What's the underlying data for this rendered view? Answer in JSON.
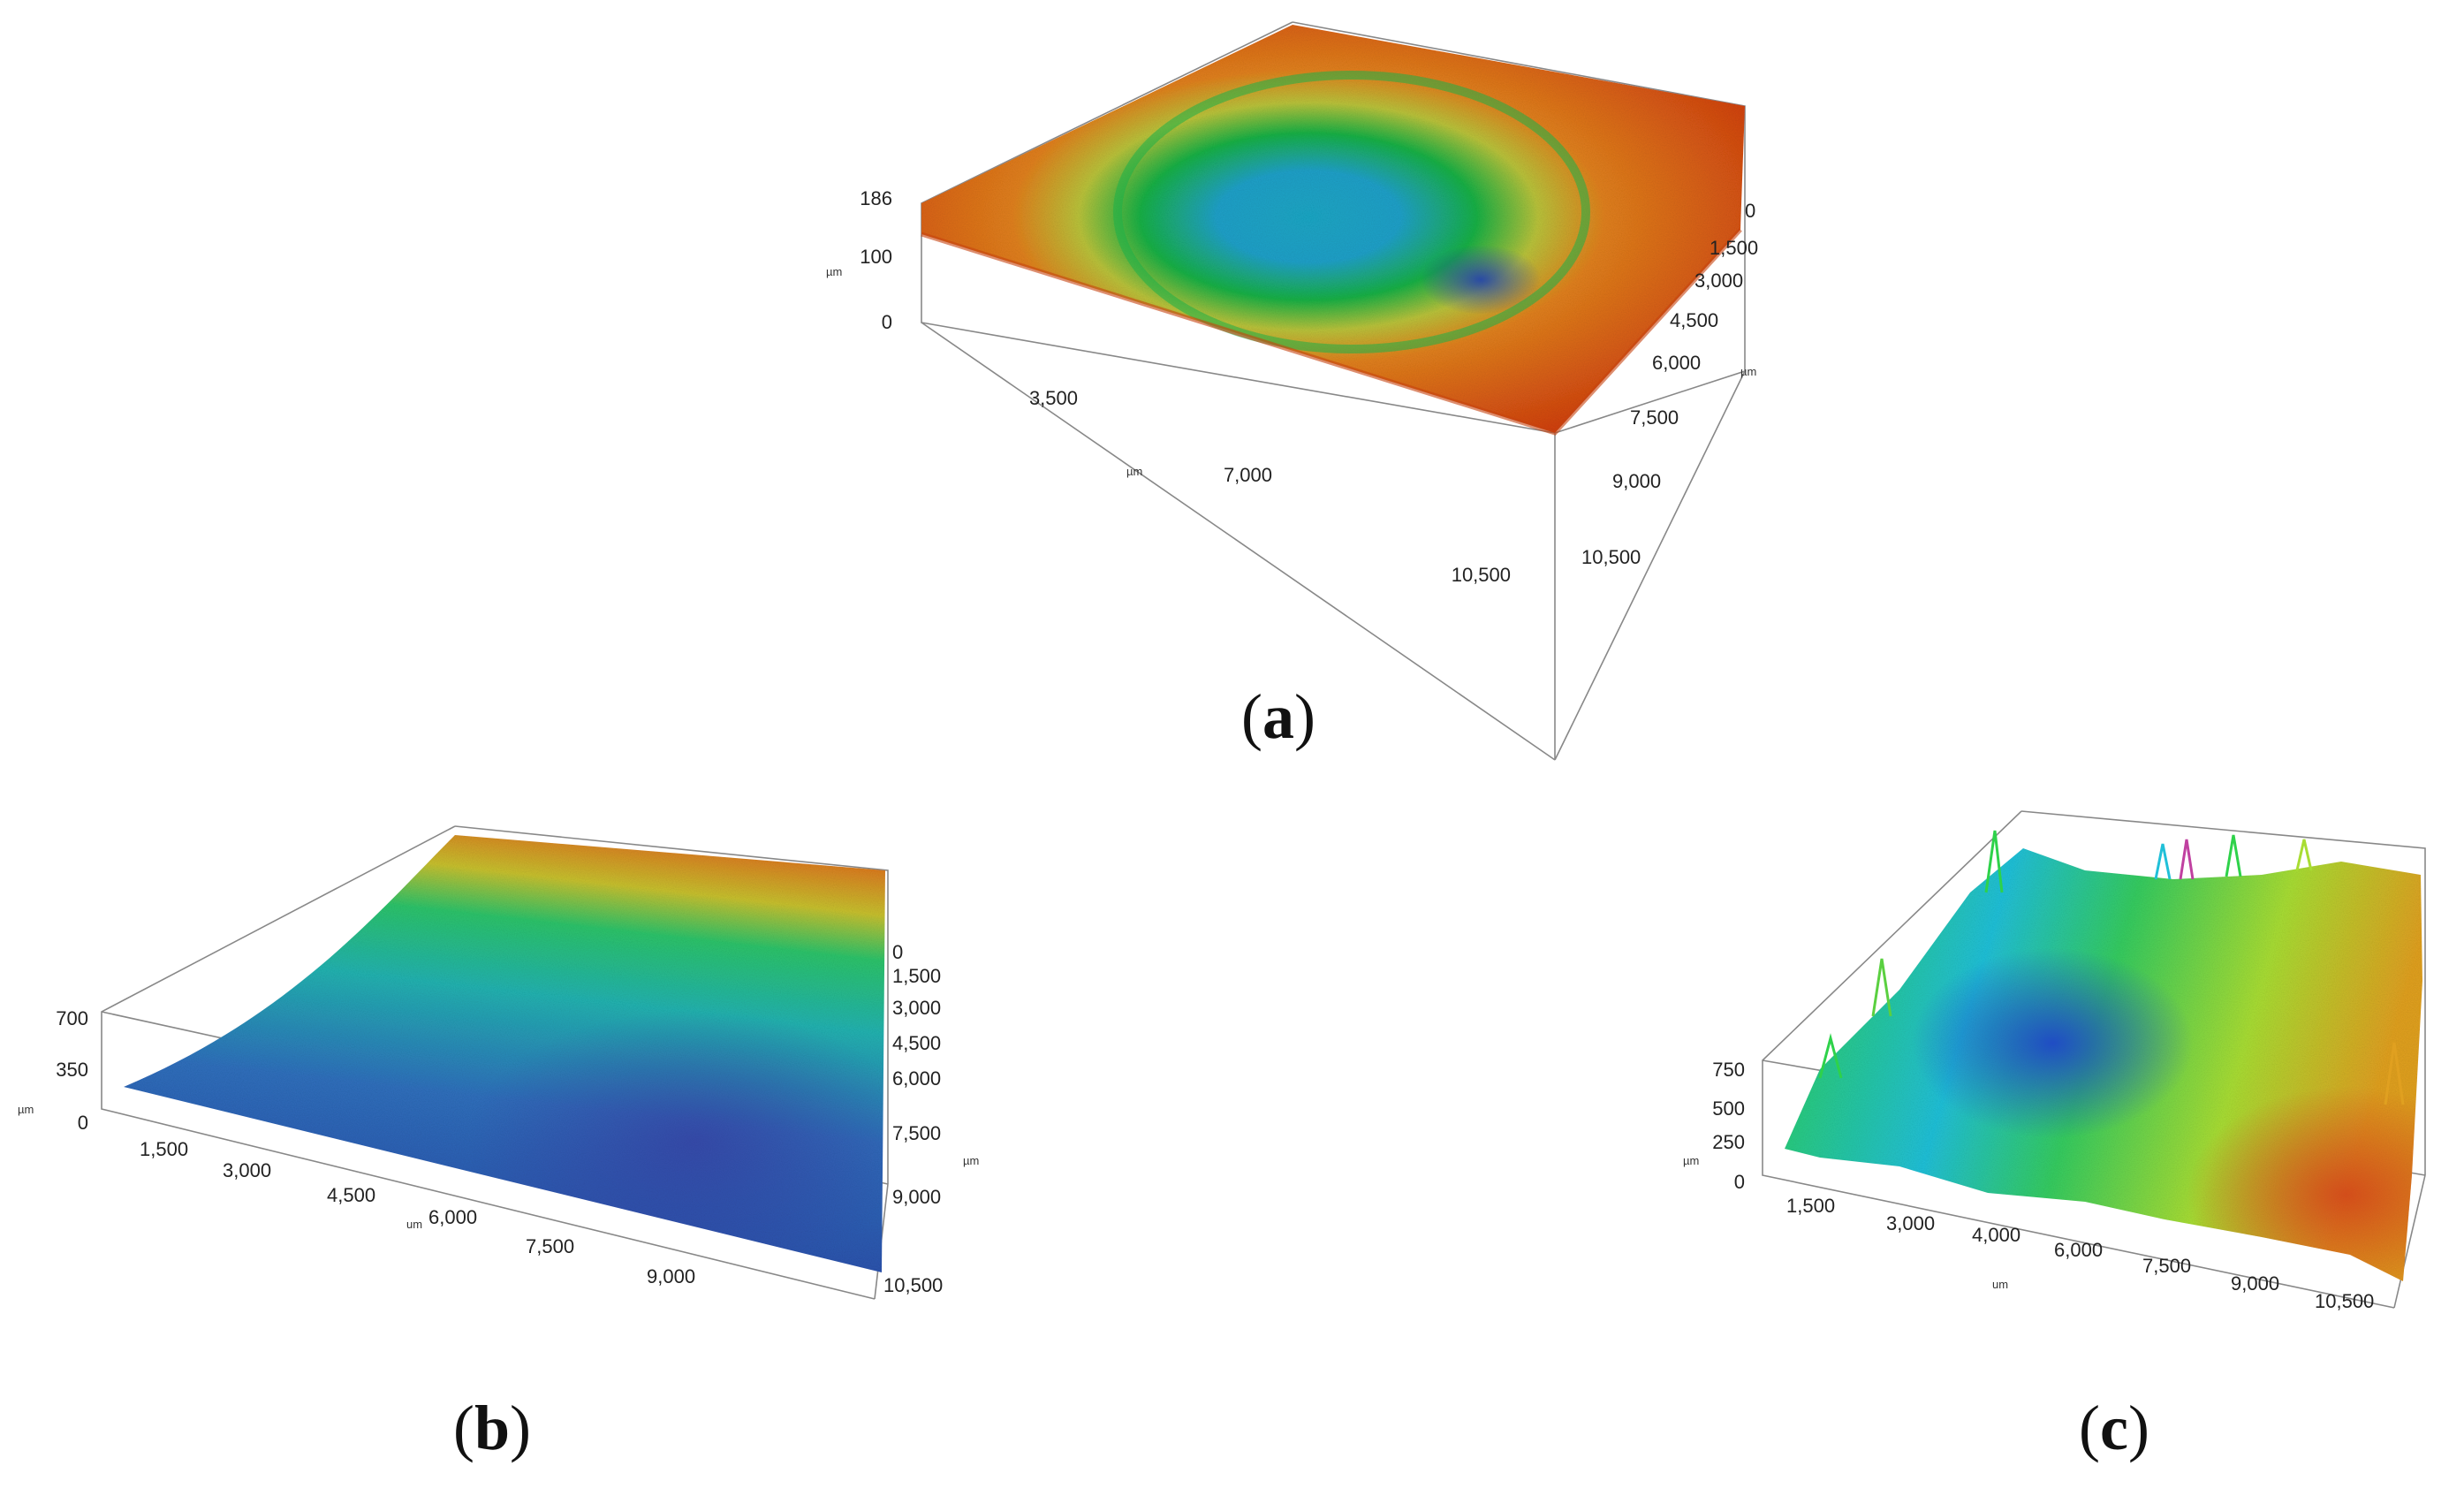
{
  "panels": [
    {
      "id": "a",
      "caption": "a",
      "z_ticks": [
        "186",
        "100",
        "0"
      ],
      "z_unit": "µm",
      "x_ticks": [
        "3,500",
        "7,000",
        "10,500"
      ],
      "x_unit": "µm",
      "y_ticks": [
        "0",
        "1,500",
        "3,000",
        "4,500",
        "6,000",
        "7,500",
        "9,000",
        "10,500"
      ],
      "y_unit": "µm",
      "colors": [
        "#1f3fb0",
        "#1aa6c4",
        "#18b045",
        "#c8c43a",
        "#e0701a",
        "#cf3b0e"
      ]
    },
    {
      "id": "b",
      "caption": "b",
      "z_ticks": [
        "700",
        "350",
        "0"
      ],
      "z_unit": "µm",
      "x_ticks": [
        "1,500",
        "3,000",
        "4,500",
        "6,000",
        "7,500",
        "9,000"
      ],
      "x_unit": "um",
      "y_ticks": [
        "0",
        "1,500",
        "3,000",
        "4,500",
        "6,000",
        "7,500",
        "9,000",
        "10,500"
      ],
      "y_unit": "µm",
      "colors": [
        "#2a3fa8",
        "#2f7fc0",
        "#21b2b0",
        "#2cc36a",
        "#c7c02e",
        "#de6e1c"
      ]
    },
    {
      "id": "c",
      "caption": "c",
      "z_ticks": [
        "750",
        "500",
        "250",
        "0"
      ],
      "z_unit": "µm",
      "x_ticks": [
        "1,500",
        "3,000",
        "4,000",
        "6,000",
        "7,500",
        "9,000",
        "10,500"
      ],
      "x_unit": "um",
      "colors": [
        "#1f47c8",
        "#20c0d8",
        "#2ed24a",
        "#a8dd33",
        "#e0a020",
        "#d2401a"
      ]
    }
  ]
}
